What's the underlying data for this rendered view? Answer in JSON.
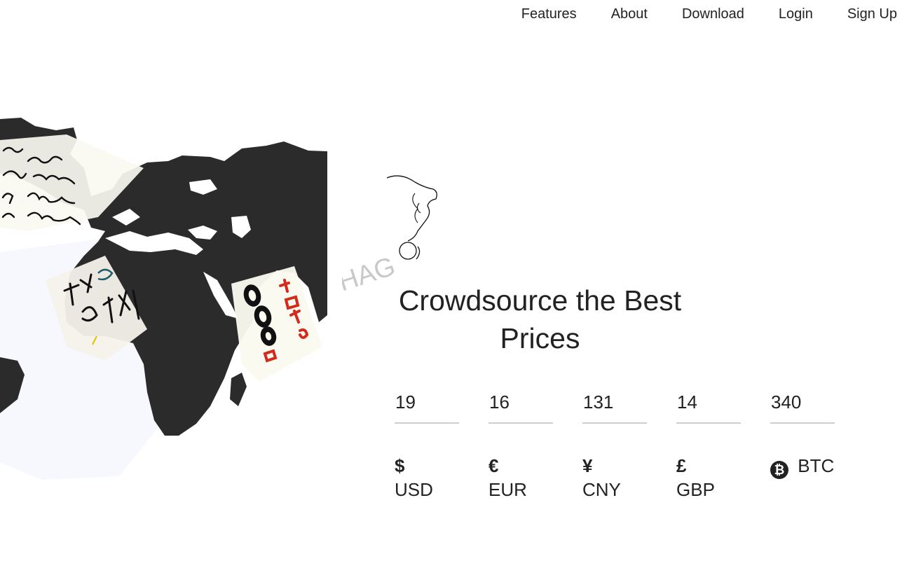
{
  "nav": {
    "items": [
      {
        "label": "Features"
      },
      {
        "label": "About"
      },
      {
        "label": "Download"
      },
      {
        "label": "Login"
      },
      {
        "label": "Sign Up"
      }
    ]
  },
  "hero": {
    "art_text": "HAG",
    "headline": "Crowdsource the Best Prices"
  },
  "prices": [
    {
      "value": "19",
      "symbol": "$",
      "code": "USD",
      "icon": "dollar-icon"
    },
    {
      "value": "16",
      "symbol": "€",
      "code": "EUR",
      "icon": "euro-icon"
    },
    {
      "value": "131",
      "symbol": "¥",
      "code": "CNY",
      "icon": "yen-icon"
    },
    {
      "value": "14",
      "symbol": "£",
      "code": "GBP",
      "icon": "pound-icon"
    },
    {
      "value": "340",
      "symbol": "₿",
      "code": "BTC",
      "icon": "bitcoin-icon"
    }
  ],
  "colors": {
    "map": "#2b2b2b",
    "text": "#222222",
    "underline": "#cfcfcf",
    "accent_red": "#d42a1c"
  }
}
